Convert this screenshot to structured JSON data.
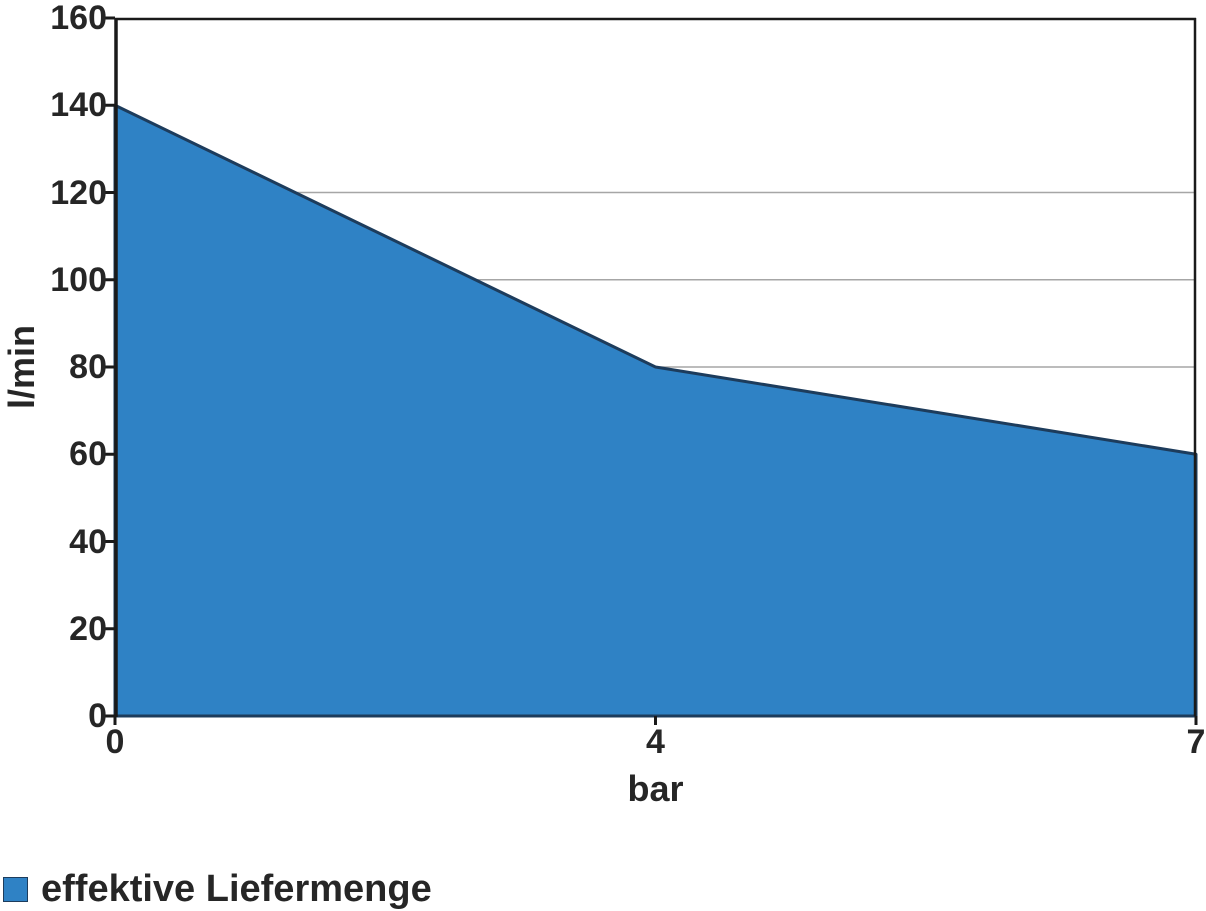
{
  "chart_data": {
    "type": "area",
    "categories": [
      "0",
      "4",
      "7"
    ],
    "series": [
      {
        "name": "effektive Liefermenge",
        "values": [
          140,
          80,
          60
        ]
      }
    ],
    "title": "",
    "xlabel": "bar",
    "ylabel": "l/min",
    "ylim": [
      0,
      160
    ],
    "yticks": [
      0,
      20,
      40,
      60,
      80,
      100,
      120,
      140,
      160
    ],
    "visible_gridlines": [
      80,
      100,
      120
    ],
    "grid": "horizontal-partial",
    "legend_position": "bottom-left",
    "area_fill": "#2f82c5",
    "area_stroke": "#1d3c5c",
    "axis_color": "#1a1a1a",
    "grid_color": "#a6a6a6",
    "text_color": "#262626"
  },
  "legend": {
    "label": "effektive Liefermenge",
    "swatch_color": "#2f82c5"
  }
}
